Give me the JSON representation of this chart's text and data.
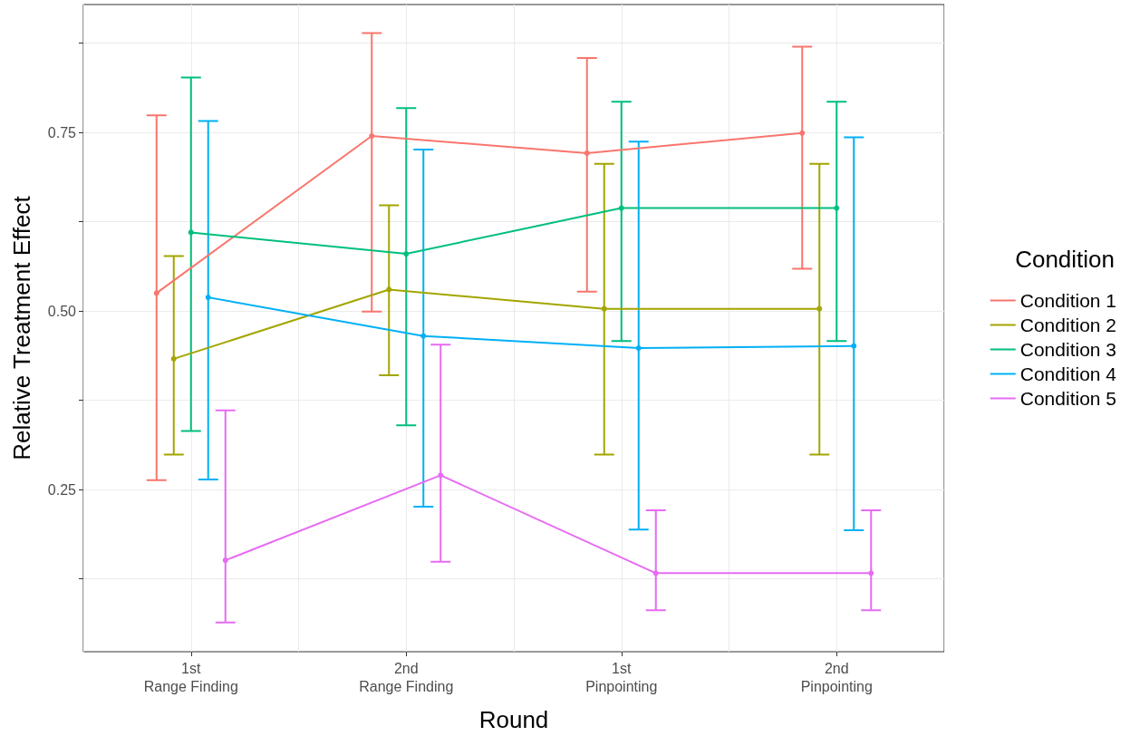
{
  "chart_data": {
    "type": "line",
    "xlabel": "Round",
    "ylabel": "Relative Treatment Effect",
    "legend_title": "Condition",
    "categories": [
      "1st\nRange Finding",
      "2nd\nRange Finding",
      "1st\nPinpointing",
      "2nd\nPinpointing"
    ],
    "ylim": [
      0.023,
      0.929
    ],
    "yticks": [
      {
        "value": 0.125,
        "label": null
      },
      {
        "value": 0.25,
        "label": "0.25"
      },
      {
        "value": 0.375,
        "label": null
      },
      {
        "value": 0.5,
        "label": "0.50"
      },
      {
        "value": 0.625,
        "label": null
      },
      {
        "value": 0.75,
        "label": "0.75"
      },
      {
        "value": 0.875,
        "label": null
      }
    ],
    "grid": true,
    "legend": "right",
    "marker": "circle",
    "line_style": "solid",
    "series": [
      {
        "name": "Condition 1",
        "color": "#f8766d",
        "values": [
          0.525,
          0.745,
          0.721,
          0.749
        ],
        "errors": [
          [
            0.263,
            0.774
          ],
          [
            0.499,
            0.889
          ],
          [
            0.527,
            0.854
          ],
          [
            0.559,
            0.87
          ]
        ]
      },
      {
        "name": "Condition 2",
        "color": "#a3a500",
        "values": [
          0.433,
          0.53,
          0.503,
          0.503
        ],
        "errors": [
          [
            0.299,
            0.577
          ],
          [
            0.41,
            0.648
          ],
          [
            0.299,
            0.706
          ],
          [
            0.299,
            0.706
          ]
        ]
      },
      {
        "name": "Condition 3",
        "color": "#00bf7d",
        "values": [
          0.61,
          0.58,
          0.644,
          0.644
        ],
        "errors": [
          [
            0.332,
            0.827
          ],
          [
            0.34,
            0.784
          ],
          [
            0.458,
            0.793
          ],
          [
            0.458,
            0.793
          ]
        ]
      },
      {
        "name": "Condition 4",
        "color": "#00b0f6",
        "values": [
          0.519,
          0.465,
          0.448,
          0.451
        ],
        "errors": [
          [
            0.264,
            0.766
          ],
          [
            0.226,
            0.726
          ],
          [
            0.194,
            0.737
          ],
          [
            0.193,
            0.743
          ]
        ]
      },
      {
        "name": "Condition 5",
        "color": "#e76bf3",
        "values": [
          0.151,
          0.27,
          0.133,
          0.133
        ],
        "errors": [
          [
            0.064,
            0.361
          ],
          [
            0.149,
            0.453
          ],
          [
            0.081,
            0.221
          ],
          [
            0.081,
            0.221
          ]
        ]
      }
    ]
  }
}
